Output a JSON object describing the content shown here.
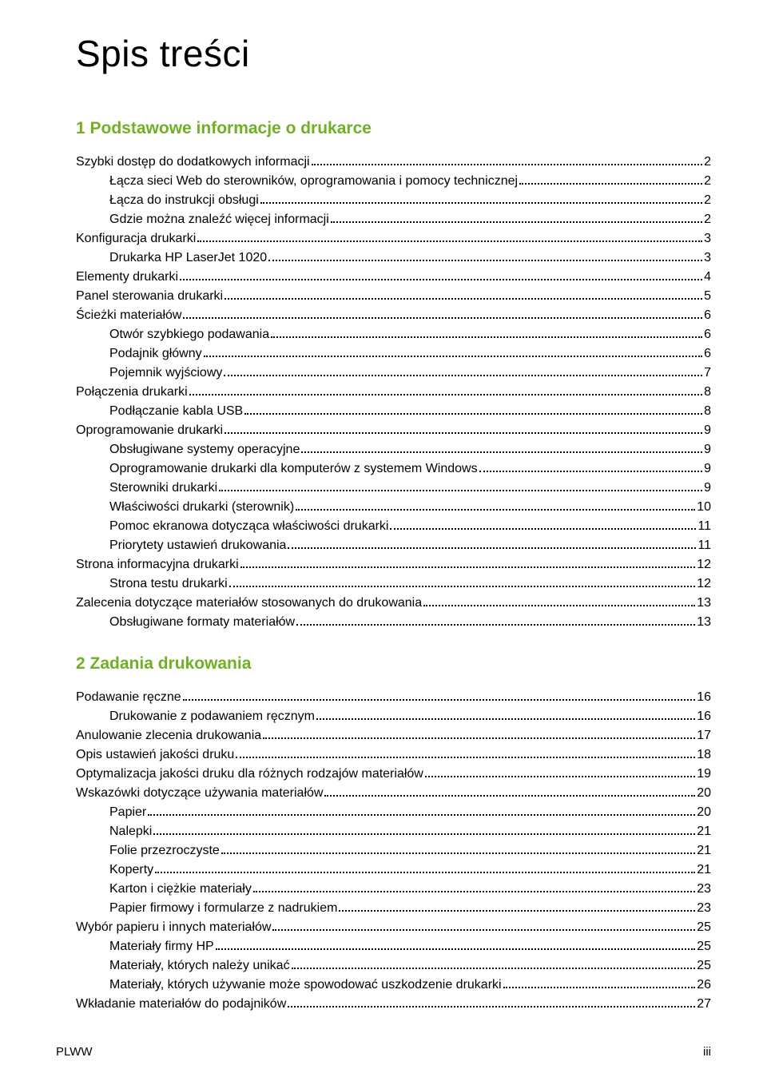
{
  "title": "Spis treści",
  "colors": {
    "section_title": "#6fb122",
    "text": "#000000",
    "background": "#ffffff"
  },
  "typography": {
    "title_fontsize": 46,
    "section_fontsize": 21,
    "body_fontsize": 16
  },
  "sections": [
    {
      "heading": "1 Podstawowe informacje o drukarce",
      "entries": [
        {
          "level": 0,
          "label": "Szybki dostęp do dodatkowych informacji",
          "page": "2"
        },
        {
          "level": 1,
          "label": "Łącza sieci Web do sterowników, oprogramowania i pomocy technicznej",
          "page": "2"
        },
        {
          "level": 1,
          "label": "Łącza do instrukcji obsługi",
          "page": "2"
        },
        {
          "level": 1,
          "label": "Gdzie można znaleźć więcej informacji",
          "page": "2"
        },
        {
          "level": 0,
          "label": "Konfiguracja drukarki",
          "page": "3"
        },
        {
          "level": 1,
          "label": "Drukarka HP LaserJet 1020",
          "page": "3"
        },
        {
          "level": 0,
          "label": "Elementy drukarki",
          "page": "4"
        },
        {
          "level": 0,
          "label": "Panel sterowania drukarki",
          "page": "5"
        },
        {
          "level": 0,
          "label": "Ścieżki materiałów",
          "page": "6"
        },
        {
          "level": 1,
          "label": "Otwór szybkiego podawania",
          "page": "6"
        },
        {
          "level": 1,
          "label": "Podajnik główny",
          "page": "6"
        },
        {
          "level": 1,
          "label": "Pojemnik wyjściowy",
          "page": "7"
        },
        {
          "level": 0,
          "label": "Połączenia drukarki",
          "page": "8"
        },
        {
          "level": 1,
          "label": "Podłączanie kabla USB",
          "page": "8"
        },
        {
          "level": 0,
          "label": "Oprogramowanie drukarki",
          "page": "9"
        },
        {
          "level": 1,
          "label": "Obsługiwane systemy operacyjne",
          "page": "9"
        },
        {
          "level": 1,
          "label": "Oprogramowanie drukarki dla komputerów z systemem Windows",
          "page": "9"
        },
        {
          "level": 1,
          "label": "Sterowniki drukarki",
          "page": "9"
        },
        {
          "level": 1,
          "label": "Właściwości drukarki (sterownik)",
          "page": "10"
        },
        {
          "level": 1,
          "label": "Pomoc ekranowa dotycząca właściwości drukarki",
          "page": "11"
        },
        {
          "level": 1,
          "label": "Priorytety ustawień drukowania",
          "page": "11"
        },
        {
          "level": 0,
          "label": "Strona informacyjna drukarki",
          "page": "12"
        },
        {
          "level": 1,
          "label": "Strona testu drukarki",
          "page": "12"
        },
        {
          "level": 0,
          "label": "Zalecenia dotyczące materiałów stosowanych do drukowania",
          "page": "13"
        },
        {
          "level": 1,
          "label": "Obsługiwane formaty materiałów",
          "page": "13"
        }
      ]
    },
    {
      "heading": "2 Zadania drukowania",
      "entries": [
        {
          "level": 0,
          "label": "Podawanie ręczne",
          "page": "16"
        },
        {
          "level": 1,
          "label": "Drukowanie z podawaniem ręcznym",
          "page": "16"
        },
        {
          "level": 0,
          "label": "Anulowanie zlecenia drukowania",
          "page": "17"
        },
        {
          "level": 0,
          "label": "Opis ustawień jakości druku",
          "page": "18"
        },
        {
          "level": 0,
          "label": "Optymalizacja jakości druku dla różnych rodzajów materiałów",
          "page": "19"
        },
        {
          "level": 0,
          "label": "Wskazówki dotyczące używania materiałów",
          "page": "20"
        },
        {
          "level": 1,
          "label": "Papier",
          "page": "20"
        },
        {
          "level": 1,
          "label": "Nalepki",
          "page": "21"
        },
        {
          "level": 1,
          "label": "Folie przezroczyste",
          "page": "21"
        },
        {
          "level": 1,
          "label": "Koperty",
          "page": "21"
        },
        {
          "level": 1,
          "label": "Karton i ciężkie materiały",
          "page": "23"
        },
        {
          "level": 1,
          "label": "Papier firmowy i formularze z nadrukiem",
          "page": "23"
        },
        {
          "level": 0,
          "label": "Wybór papieru i innych materiałów",
          "page": "25"
        },
        {
          "level": 1,
          "label": "Materiały firmy HP",
          "page": "25"
        },
        {
          "level": 1,
          "label": "Materiały, których należy unikać",
          "page": "25"
        },
        {
          "level": 1,
          "label": "Materiały, których używanie może spowodować uszkodzenie drukarki",
          "page": "26"
        },
        {
          "level": 0,
          "label": "Wkładanie materiałów do podajników",
          "page": "27"
        }
      ]
    }
  ],
  "footer": {
    "left": "PLWW",
    "right": "iii"
  }
}
